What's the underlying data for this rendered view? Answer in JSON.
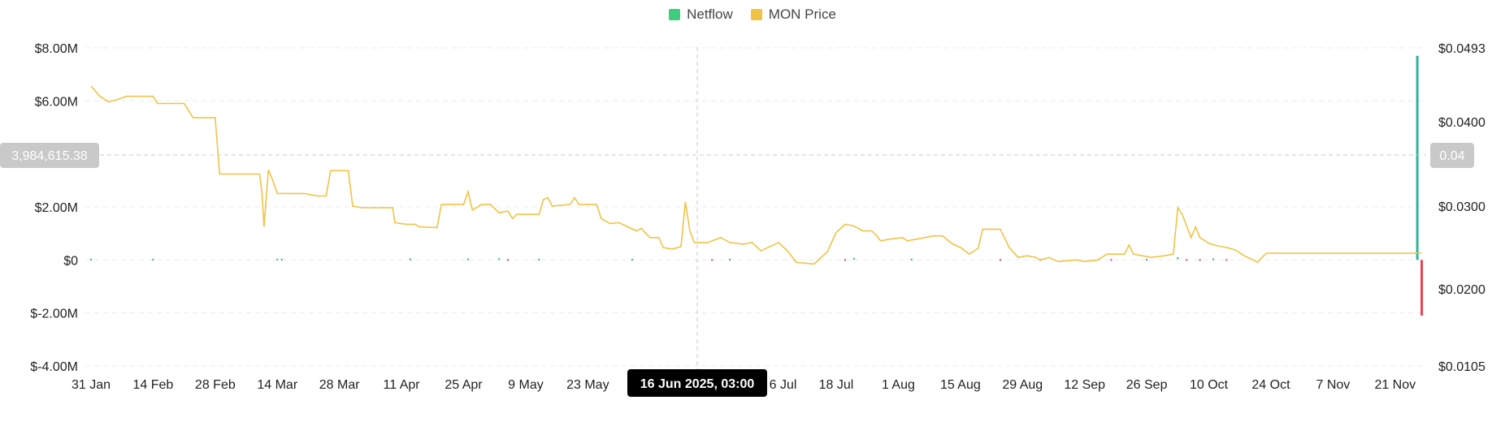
{
  "colors": {
    "netflow_pos": "#2fb39b",
    "netflow_neg": "#e64552",
    "price": "#f0c345",
    "netflow_legend": "#3ecc7f",
    "price_legend": "#f0c345"
  },
  "crosshair": {
    "x_label": "16 Jun 2025, 03:00",
    "y_left_label": "3,984,615.38",
    "y_right_label": "0.04"
  },
  "chart_data": {
    "type": "line",
    "legend": [
      "Netflow",
      "MON Price"
    ],
    "left_axis": {
      "ticks": [
        "$8.00M",
        "$6.00M",
        "$2.00M",
        "$0",
        "$-2.00M",
        "$-4.00M"
      ],
      "tick_values": [
        8000000,
        6000000,
        2000000,
        0,
        -2000000,
        -4000000
      ],
      "ylim": [
        -4000000,
        8000000
      ]
    },
    "right_axis": {
      "ticks": [
        "$0.0493",
        "$0.0400",
        "$0.0300",
        "$0.0200",
        "$0.0105"
      ],
      "tick_values": [
        0.0493,
        0.04,
        0.03,
        0.02,
        0.0105
      ],
      "ylim": [
        0.0105,
        0.0493
      ]
    },
    "x_ticks": [
      "31 Jan",
      "14 Feb",
      "28 Feb",
      "14 Mar",
      "28 Mar",
      "11 Apr",
      "25 Apr",
      "9 May",
      "23 May",
      "6 Jul",
      "18 Jul",
      "1 Aug",
      "15 Aug",
      "29 Aug",
      "12 Sep",
      "26 Sep",
      "10 Oct",
      "24 Oct",
      "7 Nov",
      "21 Nov"
    ],
    "x_tick_days": [
      0,
      14,
      28,
      42,
      56,
      70,
      84,
      98,
      112,
      156,
      168,
      182,
      196,
      210,
      224,
      238,
      252,
      266,
      280,
      294
    ],
    "x_range_days": [
      0,
      301
    ],
    "series": [
      {
        "name": "MON Price",
        "points": [
          [
            0,
            0.0445
          ],
          [
            2,
            0.0432
          ],
          [
            4,
            0.0425
          ],
          [
            6,
            0.0428
          ],
          [
            8,
            0.0432
          ],
          [
            14,
            0.0432
          ],
          [
            15,
            0.0423
          ],
          [
            21,
            0.0423
          ],
          [
            23,
            0.0405
          ],
          [
            28,
            0.0405
          ],
          [
            29,
            0.0338
          ],
          [
            38,
            0.0338
          ],
          [
            38.5,
            0.0318
          ],
          [
            39,
            0.0275
          ],
          [
            40,
            0.0343
          ],
          [
            41,
            0.033
          ],
          [
            42,
            0.0315
          ],
          [
            48,
            0.0315
          ],
          [
            51,
            0.0312
          ],
          [
            53,
            0.0312
          ],
          [
            54,
            0.0342
          ],
          [
            58,
            0.0342
          ],
          [
            59,
            0.03
          ],
          [
            61,
            0.0298
          ],
          [
            68,
            0.0298
          ],
          [
            68.5,
            0.028
          ],
          [
            71,
            0.0278
          ],
          [
            73,
            0.0278
          ],
          [
            74,
            0.0275
          ],
          [
            78,
            0.0274
          ],
          [
            79,
            0.0302
          ],
          [
            84,
            0.0302
          ],
          [
            85,
            0.0317
          ],
          [
            86,
            0.0295
          ],
          [
            88,
            0.0302
          ],
          [
            90,
            0.0302
          ],
          [
            92,
            0.0292
          ],
          [
            94,
            0.0294
          ],
          [
            95,
            0.0285
          ],
          [
            96,
            0.029
          ],
          [
            101,
            0.029
          ],
          [
            102,
            0.0308
          ],
          [
            103,
            0.031
          ],
          [
            104,
            0.03
          ],
          [
            108,
            0.0302
          ],
          [
            109,
            0.031
          ],
          [
            110,
            0.0302
          ],
          [
            114,
            0.0302
          ],
          [
            115,
            0.0285
          ],
          [
            117,
            0.0279
          ],
          [
            119,
            0.028
          ],
          [
            121,
            0.0275
          ],
          [
            123,
            0.027
          ],
          [
            124,
            0.0273
          ],
          [
            126,
            0.0262
          ],
          [
            128,
            0.0262
          ],
          [
            129,
            0.025
          ],
          [
            131,
            0.0248
          ],
          [
            133,
            0.0251
          ],
          [
            134,
            0.0305
          ],
          [
            135,
            0.027
          ],
          [
            136,
            0.0256
          ],
          [
            138,
            0.0256
          ],
          [
            139,
            0.0256
          ],
          [
            142,
            0.0262
          ],
          [
            144,
            0.0256
          ],
          [
            147,
            0.0254
          ],
          [
            149,
            0.0256
          ],
          [
            151,
            0.0246
          ],
          [
            155,
            0.0256
          ],
          [
            157,
            0.0246
          ],
          [
            159,
            0.0232
          ],
          [
            163,
            0.023
          ],
          [
            166,
            0.0245
          ],
          [
            168,
            0.0268
          ],
          [
            170,
            0.0278
          ],
          [
            172,
            0.0276
          ],
          [
            174,
            0.027
          ],
          [
            176,
            0.027
          ],
          [
            177,
            0.0265
          ],
          [
            178,
            0.0258
          ],
          [
            180,
            0.026
          ],
          [
            183,
            0.0262
          ],
          [
            184,
            0.0258
          ],
          [
            186,
            0.026
          ],
          [
            190,
            0.0264
          ],
          [
            192,
            0.0264
          ],
          [
            194,
            0.0255
          ],
          [
            196,
            0.025
          ],
          [
            198,
            0.0242
          ],
          [
            200,
            0.0249
          ],
          [
            201,
            0.0272
          ],
          [
            205,
            0.0272
          ],
          [
            207,
            0.025
          ],
          [
            209,
            0.0238
          ],
          [
            211,
            0.024
          ],
          [
            213,
            0.0238
          ],
          [
            214,
            0.0235
          ],
          [
            216,
            0.0238
          ],
          [
            218,
            0.0233
          ],
          [
            222,
            0.0235
          ],
          [
            224,
            0.0233
          ],
          [
            227,
            0.0235
          ],
          [
            229,
            0.0242
          ],
          [
            233,
            0.0242
          ],
          [
            234,
            0.0253
          ],
          [
            235,
            0.0242
          ],
          [
            237,
            0.024
          ],
          [
            239,
            0.0238
          ],
          [
            242,
            0.024
          ],
          [
            244,
            0.0242
          ],
          [
            245,
            0.0298
          ],
          [
            246,
            0.029
          ],
          [
            248,
            0.0262
          ],
          [
            249,
            0.0275
          ],
          [
            250,
            0.0262
          ],
          [
            252,
            0.0255
          ],
          [
            254,
            0.0252
          ],
          [
            256,
            0.025
          ],
          [
            258,
            0.0247
          ],
          [
            260,
            0.024
          ],
          [
            262,
            0.0235
          ],
          [
            263,
            0.0232
          ],
          [
            264,
            0.0238
          ],
          [
            265,
            0.0243
          ],
          [
            300,
            0.0243
          ]
        ]
      },
      {
        "name": "Netflow",
        "values_days": [
          [
            0,
            15000
          ],
          [
            14,
            10000
          ],
          [
            42,
            18000
          ],
          [
            43,
            12000
          ],
          [
            72,
            20000
          ],
          [
            85,
            22000
          ],
          [
            92,
            30000
          ],
          [
            94,
            -8000
          ],
          [
            101,
            12000
          ],
          [
            122,
            9000
          ],
          [
            140,
            -9000
          ],
          [
            144,
            12000
          ],
          [
            170,
            -12000
          ],
          [
            172,
            45000
          ],
          [
            185,
            12000
          ],
          [
            205,
            -14000
          ],
          [
            214,
            -10000
          ],
          [
            230,
            -9000
          ],
          [
            238,
            11000
          ],
          [
            245,
            70000
          ],
          [
            247,
            -50000
          ],
          [
            250,
            -30000
          ],
          [
            253,
            25000
          ],
          [
            256,
            -10000
          ],
          [
            299,
            7700000
          ],
          [
            300,
            -2100000
          ]
        ]
      }
    ]
  }
}
